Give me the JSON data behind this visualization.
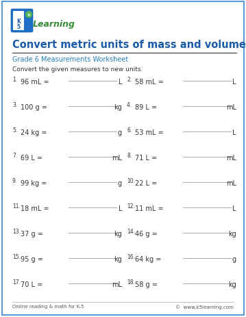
{
  "title": "Convert metric units of mass and volume",
  "subtitle": "Grade 6 Measurements Worksheet",
  "instruction": "Convert the given measures to new units.",
  "title_color": "#1a5ca8",
  "subtitle_color": "#3a7abf",
  "problems": [
    {
      "num": "1.",
      "text": "96 mL =",
      "unit": "L"
    },
    {
      "num": "2.",
      "text": "58 mL =",
      "unit": "L"
    },
    {
      "num": "3.",
      "text": "100 g =",
      "unit": "kg"
    },
    {
      "num": "4.",
      "text": "89 L =",
      "unit": "mL"
    },
    {
      "num": "5.",
      "text": "24 kg =",
      "unit": "g"
    },
    {
      "num": "6.",
      "text": "53 mL =",
      "unit": "L"
    },
    {
      "num": "7.",
      "text": "69 L =",
      "unit": "mL"
    },
    {
      "num": "8.",
      "text": "71 L =",
      "unit": "mL"
    },
    {
      "num": "9.",
      "text": "99 kg =",
      "unit": "g"
    },
    {
      "num": "10.",
      "text": "22 L =",
      "unit": "mL"
    },
    {
      "num": "11.",
      "text": "18 mL =",
      "unit": "L"
    },
    {
      "num": "12.",
      "text": "11 mL =",
      "unit": "L"
    },
    {
      "num": "13.",
      "text": "37 g =",
      "unit": "kg"
    },
    {
      "num": "14.",
      "text": "46 g =",
      "unit": "kg"
    },
    {
      "num": "15.",
      "text": "95 g =",
      "unit": "kg"
    },
    {
      "num": "16.",
      "text": "64 kg =",
      "unit": "g"
    },
    {
      "num": "17.",
      "text": "70 L =",
      "unit": "mL"
    },
    {
      "num": "18.",
      "text": "58 g =",
      "unit": "kg"
    }
  ],
  "footer_left": "Online reading & math for K-5",
  "footer_right": "©  www.k5learning.com",
  "bg_color": "#ffffff",
  "border_color": "#5b9bd5",
  "text_color": "#333333",
  "line_color": "#aaaaaa",
  "title_line_color": "#333333",
  "logo_blue": "#1a5ca8",
  "logo_green": "#3a8c3a",
  "subtitle_green": "#3a7abf"
}
